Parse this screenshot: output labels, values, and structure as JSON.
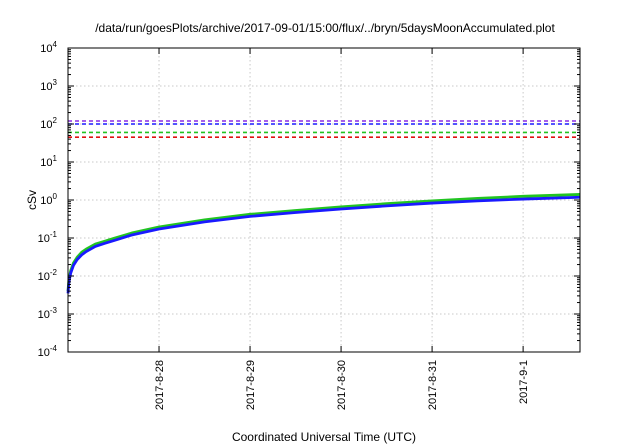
{
  "chart_data": {
    "type": "line",
    "title": "/data/run/goesPlots/archive/2017-09-01/15:00/flux/../bryn/5daysMoonAccumulated.plot",
    "xlabel": "Coordinated Universal Time (UTC)",
    "ylabel": "cSv",
    "y_scale": "log",
    "ylim": [
      0.0001,
      10000
    ],
    "y_ticks": [
      {
        "base": "10",
        "exp": "-4"
      },
      {
        "base": "10",
        "exp": "-3"
      },
      {
        "base": "10",
        "exp": "-2"
      },
      {
        "base": "10",
        "exp": "-1"
      },
      {
        "base": "10",
        "exp": "0"
      },
      {
        "base": "10",
        "exp": "1"
      },
      {
        "base": "10",
        "exp": "2"
      },
      {
        "base": "10",
        "exp": "3"
      },
      {
        "base": "10",
        "exp": "4"
      }
    ],
    "x_unit": "days",
    "xlim": [
      0.0,
      5.625
    ],
    "x_tick_labels": [
      "2017-8-28",
      "2017-8-29",
      "2017-8-30",
      "2017-8-31",
      "2017-9-1"
    ],
    "x_tick_values": [
      1,
      2,
      3,
      4,
      5
    ],
    "grid": true,
    "legend": "none",
    "reference_lines": [
      {
        "value": 120,
        "color": "#8a2be2",
        "style": "dashed"
      },
      {
        "value": 100,
        "color": "#1a1aff",
        "style": "dashed"
      },
      {
        "value": 60,
        "color": "#22c422",
        "style": "dashed"
      },
      {
        "value": 45,
        "color": "#e01010",
        "style": "dashed"
      }
    ],
    "series": [
      {
        "color": "#22c422",
        "x": [
          0.0,
          0.01,
          0.03,
          0.06,
          0.1,
          0.15,
          0.2,
          0.3,
          0.4,
          0.5,
          0.7,
          1.0,
          1.5,
          2.0,
          2.5,
          3.0,
          3.5,
          4.0,
          4.5,
          5.0,
          5.625
        ],
        "y": [
          0.004,
          0.008,
          0.014,
          0.022,
          0.031,
          0.042,
          0.051,
          0.069,
          0.082,
          0.097,
          0.135,
          0.195,
          0.3,
          0.42,
          0.53,
          0.66,
          0.8,
          0.95,
          1.1,
          1.25,
          1.4
        ]
      },
      {
        "color": "#1a1aff",
        "x": [
          0.0,
          0.01,
          0.03,
          0.06,
          0.1,
          0.15,
          0.2,
          0.3,
          0.4,
          0.5,
          0.7,
          1.0,
          1.5,
          2.0,
          2.5,
          3.0,
          3.5,
          4.0,
          4.5,
          5.0,
          5.625
        ],
        "y": [
          0.0035,
          0.007,
          0.012,
          0.019,
          0.027,
          0.036,
          0.044,
          0.06,
          0.072,
          0.085,
          0.12,
          0.172,
          0.265,
          0.37,
          0.47,
          0.58,
          0.7,
          0.83,
          0.95,
          1.06,
          1.18
        ]
      }
    ]
  }
}
